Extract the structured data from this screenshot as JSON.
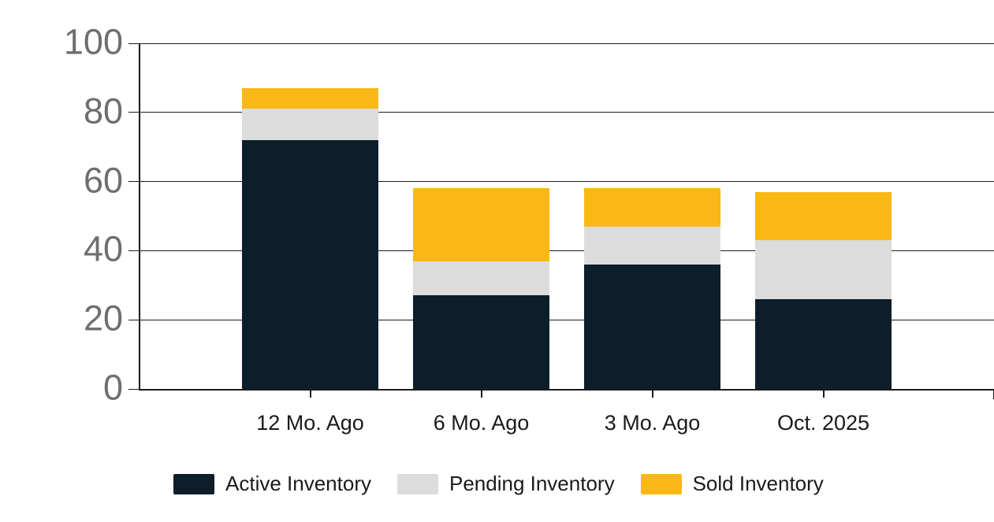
{
  "chart_data": {
    "type": "bar",
    "stacked": true,
    "title": "",
    "categories": [
      "12 Mo. Ago",
      "6 Mo. Ago",
      "3 Mo. Ago",
      "Oct. 2025"
    ],
    "series": [
      {
        "name": "Active Inventory",
        "color": "#0d1e2b",
        "values": [
          72,
          27,
          36,
          26
        ]
      },
      {
        "name": "Pending Inventory",
        "color": "#dcdcdc",
        "values": [
          9,
          10,
          11,
          17
        ]
      },
      {
        "name": "Sold Inventory",
        "color": "#f9b815",
        "values": [
          6,
          21,
          11,
          14
        ]
      }
    ],
    "stack_totals": [
      87,
      58,
      58,
      57
    ],
    "xlabel": "",
    "ylabel": "",
    "ylim": [
      0,
      100
    ],
    "yticks": [
      0,
      20,
      40,
      60,
      80,
      100
    ],
    "grid": true,
    "legend_position": "bottom",
    "colors": {
      "background": "#ffffff",
      "axis_line": "#1a1a1a",
      "gridline": "#1a1a1a",
      "y_axis_label": "#6e6e6e",
      "x_axis_label": "#1a1a1a",
      "legend_text": "#1a1a1a"
    }
  }
}
